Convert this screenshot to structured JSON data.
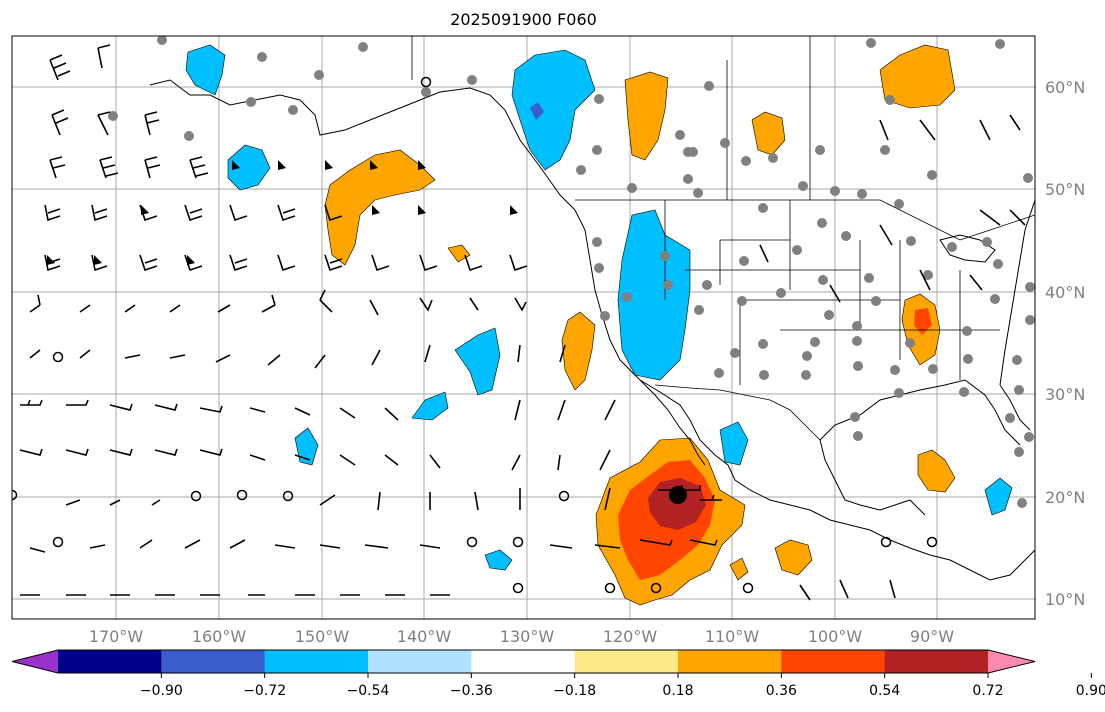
{
  "title": "2025091900 F060",
  "map": {
    "lon_labels": [
      "170°W",
      "160°W",
      "150°W",
      "140°W",
      "130°W",
      "120°W",
      "110°W",
      "100°W",
      "90°W"
    ],
    "lat_labels": [
      "60°N",
      "50°N",
      "40°N",
      "30°N",
      "20°N",
      "10°N"
    ]
  },
  "colorbar": {
    "ticks": [
      "−0.90",
      "−0.72",
      "−0.54",
      "−0.36",
      "−0.18",
      "0.18",
      "0.36",
      "0.54",
      "0.72",
      "0.90"
    ],
    "colors": [
      "#9932cc",
      "#00008b",
      "#3a5fcd",
      "#00bfff",
      "#b0e2ff",
      "#ffffff",
      "#fce98a",
      "#ffa500",
      "#ff4500",
      "#b22222",
      "#ff8ab1"
    ],
    "extend": "both"
  },
  "legend_colors": {
    "land_border": "#000000",
    "grid": "#aaaaaa",
    "station_marker": "#808080",
    "typhoon_center": "#000000"
  }
}
